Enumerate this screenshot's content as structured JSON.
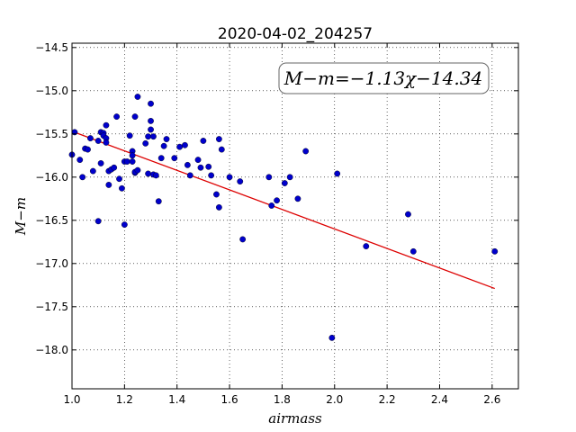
{
  "chart_data": {
    "type": "scatter",
    "title": "2020-04-02_204257",
    "xlabel": "airmass",
    "ylabel": "M−m",
    "annotation": "M−m=−1.13χ−14.34",
    "xlim": [
      1.0,
      2.7
    ],
    "ylim": [
      -18.45,
      -14.45
    ],
    "y_inverted": true,
    "grid": true,
    "x_ticks": [
      1.0,
      1.2,
      1.4,
      1.6,
      1.8,
      2.0,
      2.2,
      2.4,
      2.6
    ],
    "x_tick_labels": [
      "1.0",
      "1.2",
      "1.4",
      "1.6",
      "1.8",
      "2.0",
      "2.2",
      "2.4",
      "2.6"
    ],
    "y_ticks": [
      -14.5,
      -15.0,
      -15.5,
      -16.0,
      -16.5,
      -17.0,
      -17.5,
      -18.0
    ],
    "y_tick_labels": [
      "−14.5",
      "−15.0",
      "−15.5",
      "−16.0",
      "−16.5",
      "−17.0",
      "−17.5",
      "−18.0"
    ],
    "colors": {
      "points": "#0000cc",
      "fit": "#dd0000"
    },
    "series": [
      {
        "kind": "points",
        "x": [
          1.0,
          1.01,
          1.03,
          1.04,
          1.05,
          1.06,
          1.07,
          1.08,
          1.1,
          1.1,
          1.11,
          1.11,
          1.12,
          1.12,
          1.13,
          1.13,
          1.13,
          1.14,
          1.14,
          1.15,
          1.16,
          1.17,
          1.18,
          1.19,
          1.2,
          1.2,
          1.21,
          1.22,
          1.23,
          1.23,
          1.23,
          1.24,
          1.24,
          1.24,
          1.25,
          1.25,
          1.28,
          1.29,
          1.29,
          1.3,
          1.3,
          1.3,
          1.31,
          1.31,
          1.32,
          1.33,
          1.34,
          1.35,
          1.36,
          1.39,
          1.41,
          1.43,
          1.44,
          1.45,
          1.48,
          1.49,
          1.5,
          1.52,
          1.53,
          1.55,
          1.56,
          1.56,
          1.57,
          1.6,
          1.64,
          1.65,
          1.75,
          1.76,
          1.78,
          1.81,
          1.83,
          1.86,
          1.89,
          1.99,
          2.01,
          2.12,
          2.28,
          2.3,
          2.61
        ],
        "y": [
          -15.74,
          -15.48,
          -15.8,
          -16.0,
          -15.67,
          -15.68,
          -15.55,
          -15.93,
          -15.58,
          -16.51,
          -15.48,
          -15.84,
          -15.49,
          -15.52,
          -15.4,
          -15.55,
          -15.6,
          -15.93,
          -16.09,
          -15.91,
          -15.89,
          -15.3,
          -16.02,
          -16.13,
          -15.82,
          -16.55,
          -15.82,
          -15.52,
          -15.7,
          -15.75,
          -15.82,
          -15.3,
          -15.95,
          -15.94,
          -15.07,
          -15.92,
          -15.61,
          -15.53,
          -15.96,
          -15.15,
          -15.35,
          -15.45,
          -15.97,
          -15.53,
          -15.98,
          -16.28,
          -15.78,
          -15.64,
          -15.56,
          -15.78,
          -15.65,
          -15.63,
          -15.86,
          -15.98,
          -15.8,
          -15.89,
          -15.58,
          -15.88,
          -15.98,
          -16.2,
          -16.35,
          -15.56,
          -15.68,
          -16.0,
          -16.05,
          -16.72,
          -16.0,
          -16.33,
          -16.27,
          -16.07,
          -16.0,
          -16.25,
          -15.7,
          -17.86,
          -15.96,
          -16.8,
          -16.43,
          -16.86,
          -16.86
        ]
      },
      {
        "kind": "fit",
        "slope": -1.13,
        "intercept": -14.34,
        "x_range": [
          1.0,
          2.61
        ]
      }
    ]
  }
}
